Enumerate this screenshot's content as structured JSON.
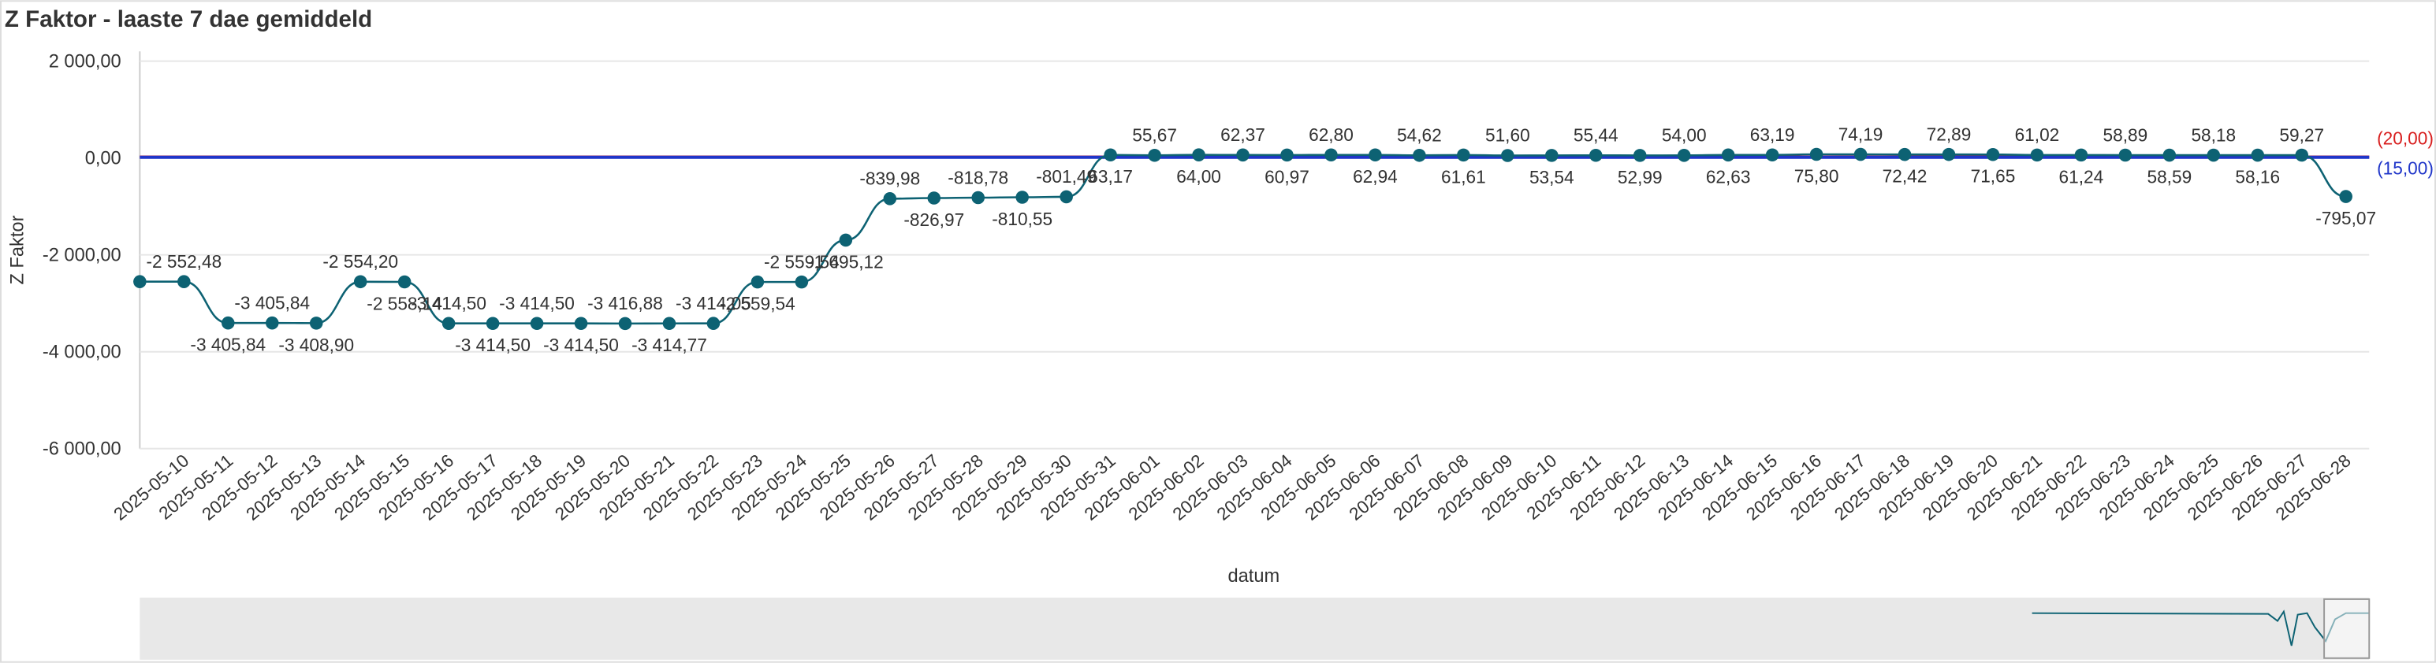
{
  "chart_data": {
    "type": "line",
    "title": "Z Faktor - laaste 7 dae gemiddeld",
    "xlabel": "datum",
    "ylabel": "Z Faktor",
    "categories": [
      null,
      "2025-05-10",
      "2025-05-11",
      "2025-05-12",
      "2025-05-13",
      "2025-05-14",
      "2025-05-15",
      "2025-05-16",
      "2025-05-17",
      "2025-05-18",
      "2025-05-19",
      "2025-05-20",
      "2025-05-21",
      "2025-05-22",
      "2025-05-23",
      "2025-05-24",
      "2025-05-25",
      "2025-05-26",
      "2025-05-27",
      "2025-05-28",
      "2025-05-29",
      "2025-05-30",
      "2025-05-31",
      "2025-06-01",
      "2025-06-02",
      "2025-06-03",
      "2025-06-04",
      "2025-06-05",
      "2025-06-06",
      "2025-06-07",
      "2025-06-08",
      "2025-06-09",
      "2025-06-10",
      "2025-06-11",
      "2025-06-12",
      "2025-06-13",
      "2025-06-14",
      "2025-06-15",
      "2025-06-16",
      "2025-06-17",
      "2025-06-18",
      "2025-06-19",
      "2025-06-20",
      "2025-06-21",
      "2025-06-22",
      "2025-06-23",
      "2025-06-24",
      "2025-06-25",
      "2025-06-26",
      "2025-06-27",
      "2025-06-28"
    ],
    "series": [
      {
        "name": "Z Faktor",
        "color": "#0d6273",
        "values": [
          -2552.48,
          -2552.48,
          -3405.84,
          -3405.84,
          -3408.9,
          -2554.2,
          -2558.14,
          -3414.5,
          -3414.5,
          -3414.5,
          -3414.5,
          -3416.88,
          -3414.77,
          -3414.05,
          -2559.54,
          -2559.54,
          -1695.12,
          -839.98,
          -826.97,
          -818.78,
          -810.55,
          -801.49,
          63.17,
          55.67,
          64.0,
          62.37,
          60.97,
          62.8,
          62.94,
          54.62,
          61.61,
          51.6,
          53.54,
          55.44,
          52.99,
          54.0,
          62.63,
          63.19,
          75.8,
          74.19,
          72.42,
          72.89,
          71.65,
          61.02,
          61.24,
          58.89,
          58.59,
          58.18,
          58.16,
          59.27,
          -795.07
        ],
        "value_labels": [
          null,
          "-2 552,48",
          "-3 405,84",
          "-3 405,84",
          "-3 408,90",
          "-2 554,20",
          "-2 558,14",
          "-3 414,50",
          "-3 414,50",
          "-3 414,50",
          "-3 414,50",
          "-3 416,88",
          "-3 414,77",
          "-3 414,05",
          "-2 559,54",
          "-2 559,54",
          "-1 695,12",
          "-839,98",
          "-826,97",
          "-818,78",
          "-810,55",
          "-801,49",
          "63,17",
          "55,67",
          "64,00",
          "62,37",
          "60,97",
          "62,80",
          "62,94",
          "54,62",
          "61,61",
          "51,60",
          "53,54",
          "55,44",
          "52,99",
          "54,00",
          "62,63",
          "63,19",
          "75,80",
          "74,19",
          "72,42",
          "72,89",
          "71,65",
          "61,02",
          "61,24",
          "58,89",
          "58,59",
          "58,18",
          "58,16",
          "59,27",
          "-795,07"
        ]
      }
    ],
    "reference_lines": [
      {
        "value": 20,
        "label": "(20,00)",
        "color": "#d81e1e"
      },
      {
        "value": 15,
        "label": "(15,00)",
        "color": "#1f35c9"
      }
    ],
    "ylim": [
      -6000,
      2200
    ],
    "yticks": [
      {
        "value": 2000,
        "label": "2 000,00"
      },
      {
        "value": 0,
        "label": "0,00"
      },
      {
        "value": -2000,
        "label": "-2 000,00"
      },
      {
        "value": -4000,
        "label": "-4 000,00"
      },
      {
        "value": -6000,
        "label": "-6 000,00"
      }
    ],
    "grid": true
  }
}
